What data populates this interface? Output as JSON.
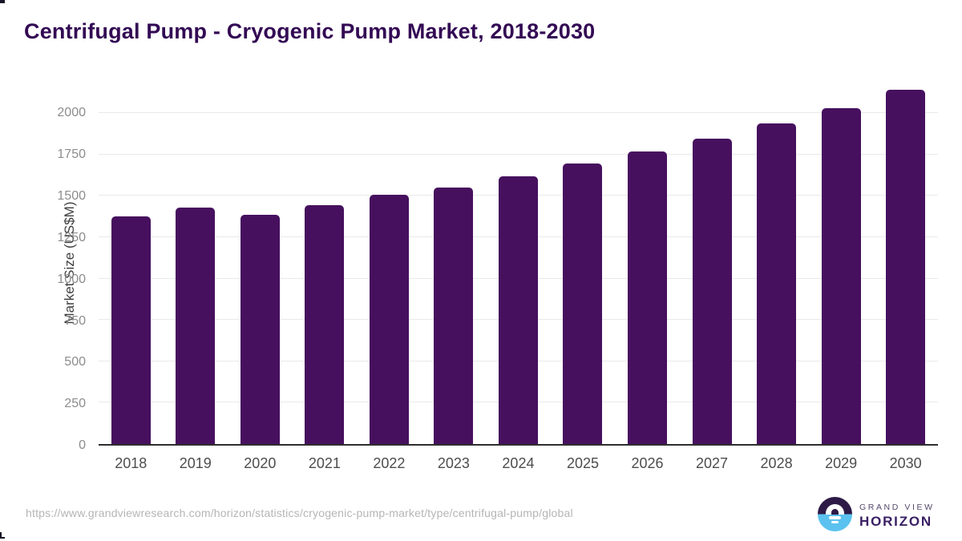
{
  "chart_data": {
    "type": "bar",
    "title": "Centrifugal Pump - Cryogenic Pump Market, 2018-2030",
    "categories": [
      "2018",
      "2019",
      "2020",
      "2021",
      "2022",
      "2023",
      "2024",
      "2025",
      "2026",
      "2027",
      "2028",
      "2029",
      "2030"
    ],
    "values": [
      1375,
      1430,
      1386,
      1445,
      1506,
      1551,
      1618,
      1695,
      1769,
      1848,
      1939,
      2031,
      2143
    ],
    "xlabel": "",
    "ylabel": "Market Size (US$M)",
    "yticks": [
      0,
      250,
      500,
      750,
      1000,
      1250,
      1500,
      1750,
      2000
    ],
    "ylim": [
      0,
      2200
    ],
    "grid": true,
    "legend_position": "none",
    "bar_color": "#46105e"
  },
  "footer": {
    "source_url": "https://www.grandviewresearch.com/horizon/statistics/cryogenic-pump-market/type/centrifugal-pump/global",
    "brand": {
      "line1": "GRAND VIEW",
      "line2": "HORIZON"
    }
  },
  "colors": {
    "accent_purple": "#46105e",
    "title_purple": "#330a54",
    "logo_dark_purple": "#2e1a47",
    "logo_light_blue": "#5bc2ef",
    "gridline": "#e9e9e9",
    "axis_line": "#2e2e2e"
  }
}
